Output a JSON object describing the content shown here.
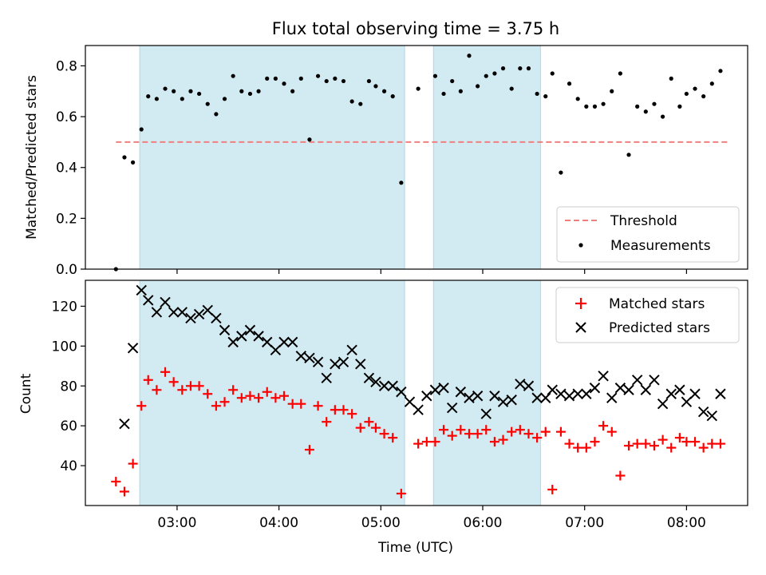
{
  "title": "Flux total observing time = 3.75 h",
  "colors": {
    "band": "#add8e6",
    "threshold": "#f08080",
    "matched": "#ff0000",
    "predicted": "#000000",
    "measurement": "#000000"
  },
  "chart_data": [
    {
      "type": "scatter",
      "title": "Flux total observing time = 3.75 h",
      "xlabel": "",
      "ylabel": "Matched/Predicted stars",
      "ylim": [
        0,
        0.88
      ],
      "yticks": [
        "0.0",
        "0.2",
        "0.4",
        "0.6",
        "0.8"
      ],
      "shaded_intervals": [
        [
          "02:38",
          "05:14"
        ],
        [
          "05:31",
          "06:34"
        ]
      ],
      "threshold": {
        "name": "Threshold",
        "y": 0.5,
        "x_range": [
          "02:24",
          "08:25"
        ]
      },
      "legend": [
        "Threshold",
        "Measurements"
      ],
      "legend_position": "lower right",
      "series": [
        {
          "name": "Measurements",
          "x": [
            "02:24",
            "02:29",
            "02:34",
            "02:39",
            "02:43",
            "02:48",
            "02:53",
            "02:58",
            "03:03",
            "03:08",
            "03:13",
            "03:18",
            "03:23",
            "03:28",
            "03:33",
            "03:38",
            "03:43",
            "03:48",
            "03:53",
            "03:58",
            "04:03",
            "04:08",
            "04:13",
            "04:18",
            "04:23",
            "04:28",
            "04:33",
            "04:38",
            "04:43",
            "04:48",
            "04:53",
            "04:57",
            "05:02",
            "05:07",
            "05:12",
            "05:22",
            "05:32",
            "05:37",
            "05:42",
            "05:47",
            "05:52",
            "05:57",
            "06:02",
            "06:07",
            "06:12",
            "06:17",
            "06:22",
            "06:27",
            "06:32",
            "06:37",
            "06:41",
            "06:46",
            "06:51",
            "06:56",
            "07:01",
            "07:06",
            "07:11",
            "07:16",
            "07:21",
            "07:26",
            "07:31",
            "07:36",
            "07:41",
            "07:46",
            "07:51",
            "07:56",
            "08:00",
            "08:05",
            "08:10",
            "08:15",
            "08:20"
          ],
          "y": [
            0.0,
            0.44,
            0.42,
            0.55,
            0.68,
            0.67,
            0.71,
            0.7,
            0.67,
            0.7,
            0.69,
            0.65,
            0.61,
            0.67,
            0.76,
            0.7,
            0.69,
            0.7,
            0.75,
            0.75,
            0.73,
            0.7,
            0.75,
            0.51,
            0.76,
            0.74,
            0.75,
            0.74,
            0.66,
            0.65,
            0.74,
            0.72,
            0.7,
            0.68,
            0.34,
            0.71,
            0.76,
            0.69,
            0.74,
            0.7,
            0.84,
            0.72,
            0.76,
            0.77,
            0.79,
            0.71,
            0.79,
            0.79,
            0.69,
            0.68,
            0.77,
            0.38,
            0.73,
            0.67,
            0.64,
            0.64,
            0.65,
            0.7,
            0.77,
            0.45,
            0.64,
            0.62,
            0.65,
            0.6,
            0.75,
            0.64,
            0.69,
            0.71,
            0.68,
            0.73,
            0.78
          ]
        }
      ]
    },
    {
      "type": "scatter",
      "xlabel": "Time (UTC)",
      "ylabel": "Count",
      "ylim": [
        20,
        133
      ],
      "yticks": [
        "40",
        "60",
        "80",
        "100",
        "120"
      ],
      "xlim": [
        "02:06",
        "08:36"
      ],
      "xticks": [
        "03:00",
        "04:00",
        "05:00",
        "06:00",
        "07:00",
        "08:00"
      ],
      "shaded_intervals": [
        [
          "02:38",
          "05:14"
        ],
        [
          "05:31",
          "06:34"
        ]
      ],
      "legend": [
        "Matched stars",
        "Predicted stars"
      ],
      "legend_position": "upper right",
      "series": [
        {
          "name": "Matched stars",
          "marker": "plus",
          "x": [
            "02:24",
            "02:29",
            "02:34",
            "02:39",
            "02:43",
            "02:48",
            "02:53",
            "02:58",
            "03:03",
            "03:08",
            "03:13",
            "03:18",
            "03:23",
            "03:28",
            "03:33",
            "03:38",
            "03:43",
            "03:48",
            "03:53",
            "03:58",
            "04:03",
            "04:08",
            "04:13",
            "04:18",
            "04:23",
            "04:28",
            "04:33",
            "04:38",
            "04:43",
            "04:48",
            "04:53",
            "04:57",
            "05:02",
            "05:07",
            "05:12",
            "05:22",
            "05:27",
            "05:32",
            "05:37",
            "05:42",
            "05:47",
            "05:52",
            "05:57",
            "06:02",
            "06:07",
            "06:12",
            "06:17",
            "06:22",
            "06:27",
            "06:32",
            "06:37",
            "06:41",
            "06:46",
            "06:51",
            "06:56",
            "07:01",
            "07:06",
            "07:11",
            "07:16",
            "07:21",
            "07:26",
            "07:31",
            "07:36",
            "07:41",
            "07:46",
            "07:51",
            "07:56",
            "08:00",
            "08:05",
            "08:10",
            "08:15",
            "08:20"
          ],
          "y": [
            32,
            27,
            41,
            70,
            83,
            78,
            87,
            82,
            78,
            80,
            80,
            76,
            70,
            72,
            78,
            74,
            75,
            74,
            77,
            74,
            75,
            71,
            71,
            48,
            70,
            62,
            68,
            68,
            66,
            59,
            62,
            59,
            56,
            54,
            26,
            51,
            52,
            52,
            58,
            55,
            58,
            56,
            56,
            58,
            52,
            53,
            57,
            58,
            56,
            54,
            57,
            28,
            57,
            51,
            49,
            49,
            52,
            60,
            57,
            35,
            50,
            51,
            51,
            50,
            53,
            49,
            54,
            52,
            52,
            49,
            51,
            51
          ]
        },
        {
          "name": "Predicted stars",
          "marker": "x",
          "x": [
            "02:29",
            "02:34",
            "02:39",
            "02:43",
            "02:48",
            "02:53",
            "02:58",
            "03:03",
            "03:08",
            "03:13",
            "03:18",
            "03:23",
            "03:28",
            "03:33",
            "03:38",
            "03:43",
            "03:48",
            "03:53",
            "03:58",
            "04:03",
            "04:08",
            "04:13",
            "04:18",
            "04:23",
            "04:28",
            "04:33",
            "04:38",
            "04:43",
            "04:48",
            "04:53",
            "04:57",
            "05:02",
            "05:07",
            "05:12",
            "05:17",
            "05:22",
            "05:27",
            "05:32",
            "05:37",
            "05:42",
            "05:47",
            "05:52",
            "05:57",
            "06:02",
            "06:07",
            "06:12",
            "06:17",
            "06:22",
            "06:27",
            "06:32",
            "06:37",
            "06:41",
            "06:46",
            "06:51",
            "06:56",
            "07:01",
            "07:06",
            "07:11",
            "07:16",
            "07:21",
            "07:26",
            "07:31",
            "07:36",
            "07:41",
            "07:46",
            "07:51",
            "07:56",
            "08:00",
            "08:05",
            "08:10",
            "08:15",
            "08:20"
          ],
          "y": [
            61,
            99,
            128,
            123,
            117,
            122,
            117,
            117,
            114,
            116,
            118,
            114,
            108,
            102,
            105,
            108,
            105,
            102,
            98,
            102,
            102,
            95,
            94,
            92,
            84,
            91,
            92,
            98,
            91,
            84,
            82,
            80,
            80,
            77,
            72,
            68,
            75,
            78,
            79,
            69,
            77,
            74,
            75,
            66,
            75,
            72,
            73,
            81,
            80,
            74,
            74,
            78,
            76,
            75,
            76,
            76,
            79,
            85,
            74,
            79,
            78,
            83,
            78,
            83,
            71,
            76,
            78,
            72,
            76,
            67,
            65,
            76
          ]
        }
      ]
    }
  ]
}
